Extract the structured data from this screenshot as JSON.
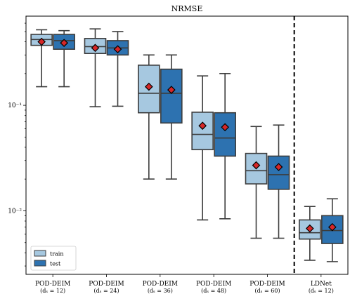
{
  "chart_data": {
    "type": "box",
    "title": "NRMSE",
    "yscale": "log",
    "ylim": [
      0.0025,
      0.7
    ],
    "ytick_values": [
      0.01,
      0.1
    ],
    "ytick_labels": [
      "10⁻²",
      "10⁻¹"
    ],
    "categories": [
      {
        "label": "POD-DEIM",
        "sub": "(dₛ = 12)"
      },
      {
        "label": "POD-DEIM",
        "sub": "(dₛ = 24)"
      },
      {
        "label": "POD-DEIM",
        "sub": "(dₛ = 36)"
      },
      {
        "label": "POD-DEIM",
        "sub": "(dₛ = 48)"
      },
      {
        "label": "POD-DEIM",
        "sub": "(dₛ = 60)"
      },
      {
        "label": "LDNet",
        "sub": "(dₛ = 12)"
      }
    ],
    "separator_after_category": 4,
    "series": [
      {
        "name": "train",
        "color": "#a6c8e0",
        "boxes": [
          {
            "whislo": 0.15,
            "q1": 0.37,
            "med": 0.42,
            "q3": 0.47,
            "whishi": 0.52,
            "mean": 0.4
          },
          {
            "whislo": 0.097,
            "q1": 0.31,
            "med": 0.36,
            "q3": 0.43,
            "whishi": 0.53,
            "mean": 0.35
          },
          {
            "whislo": 0.02,
            "q1": 0.085,
            "med": 0.13,
            "q3": 0.24,
            "whishi": 0.3,
            "mean": 0.15
          },
          {
            "whislo": 0.0082,
            "q1": 0.038,
            "med": 0.053,
            "q3": 0.086,
            "whishi": 0.19,
            "mean": 0.064
          },
          {
            "whislo": 0.0055,
            "q1": 0.018,
            "med": 0.024,
            "q3": 0.035,
            "whishi": 0.063,
            "mean": 0.027
          },
          {
            "whislo": 0.0034,
            "q1": 0.0054,
            "med": 0.0062,
            "q3": 0.0082,
            "whishi": 0.011,
            "mean": 0.0068
          }
        ]
      },
      {
        "name": "test",
        "color": "#2d72b0",
        "boxes": [
          {
            "whislo": 0.15,
            "q1": 0.34,
            "med": 0.41,
            "q3": 0.47,
            "whishi": 0.51,
            "mean": 0.39
          },
          {
            "whislo": 0.098,
            "q1": 0.3,
            "med": 0.35,
            "q3": 0.41,
            "whishi": 0.5,
            "mean": 0.34
          },
          {
            "whislo": 0.02,
            "q1": 0.068,
            "med": 0.13,
            "q3": 0.22,
            "whishi": 0.3,
            "mean": 0.14
          },
          {
            "whislo": 0.0084,
            "q1": 0.033,
            "med": 0.049,
            "q3": 0.085,
            "whishi": 0.2,
            "mean": 0.062
          },
          {
            "whislo": 0.0055,
            "q1": 0.016,
            "med": 0.022,
            "q3": 0.033,
            "whishi": 0.065,
            "mean": 0.026
          },
          {
            "whislo": 0.0033,
            "q1": 0.0049,
            "med": 0.0065,
            "q3": 0.009,
            "whishi": 0.013,
            "mean": 0.007
          }
        ]
      }
    ],
    "mean_marker_color": "#d62728",
    "legend": {
      "placement": "lower-left",
      "entries": [
        "train",
        "test"
      ]
    }
  }
}
